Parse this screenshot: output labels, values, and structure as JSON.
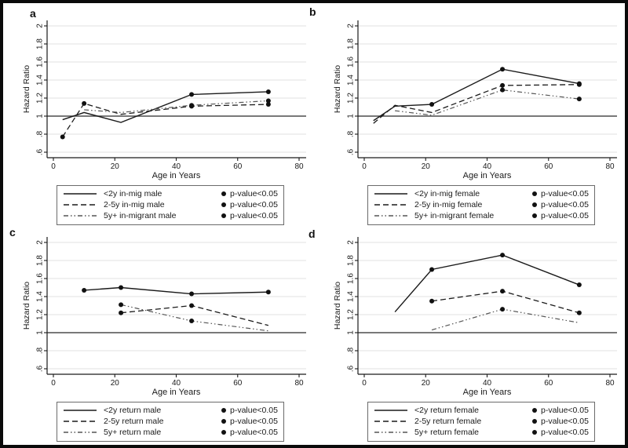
{
  "colors": {
    "line": "#1a1a1a",
    "dashdot_line": "#555555",
    "grid": "#e1e1e1",
    "reference_line": "#4d4d4d",
    "axis": "#1a1a1a",
    "background": "#ffffff",
    "border": "#0a0a0a"
  },
  "chart_data": {
    "type": "line",
    "axes": {
      "xlabel": "Age in Years",
      "ylabel": "Hazard Ratio",
      "xlim": [
        0,
        80
      ],
      "ylim": [
        0.55,
        2.05
      ],
      "grid": "horizontal",
      "reference_line_y": 1,
      "x_ticks": [
        {
          "value": 0,
          "label": "0"
        },
        {
          "value": 20,
          "label": "20"
        },
        {
          "value": 40,
          "label": "40"
        },
        {
          "value": 60,
          "label": "60"
        },
        {
          "value": 80,
          "label": "80"
        }
      ],
      "y_ticks": [
        {
          "value": 2,
          "label": "2"
        },
        {
          "value": 1.8,
          "label": "1.8"
        },
        {
          "value": 1.6,
          "label": "1.6"
        },
        {
          "value": 1.4,
          "label": "1.4"
        },
        {
          "value": 1.2,
          "label": "1.2"
        },
        {
          "value": 1,
          "label": "1"
        },
        {
          "value": 0.8,
          "label": ".8"
        },
        {
          "value": 0.6,
          "label": ".6"
        }
      ]
    },
    "legend_position": "bottom-center",
    "panels": [
      {
        "letter": "a",
        "series": [
          {
            "label": "<2y in-mig male",
            "pattern": "solid",
            "p_label": "p-value<0.05",
            "points": [
              {
                "x": 3,
                "y": 0.96,
                "sig": false
              },
              {
                "x": 10,
                "y": 1.04,
                "sig": false
              },
              {
                "x": 22,
                "y": 0.93,
                "sig": false
              },
              {
                "x": 45,
                "y": 1.24,
                "sig": true
              },
              {
                "x": 70,
                "y": 1.27,
                "sig": true
              }
            ]
          },
          {
            "label": "2-5y in-mig male",
            "pattern": "dashed",
            "p_label": "p-value<0.05",
            "points": [
              {
                "x": 3,
                "y": 0.77,
                "sig": true
              },
              {
                "x": 10,
                "y": 1.14,
                "sig": true
              },
              {
                "x": 22,
                "y": 1.02,
                "sig": false
              },
              {
                "x": 45,
                "y": 1.11,
                "sig": true
              },
              {
                "x": 70,
                "y": 1.13,
                "sig": true
              }
            ]
          },
          {
            "label": "5y+ in-migrant male",
            "pattern": "dashdot",
            "p_label": "p-value<0.05",
            "points": [
              {
                "x": 10,
                "y": 1.07,
                "sig": false
              },
              {
                "x": 22,
                "y": 1.04,
                "sig": false
              },
              {
                "x": 45,
                "y": 1.12,
                "sig": true
              },
              {
                "x": 70,
                "y": 1.17,
                "sig": true
              }
            ]
          }
        ]
      },
      {
        "letter": "b",
        "series": [
          {
            "label": "<2y in-mig female",
            "pattern": "solid",
            "p_label": "p-value<0.05",
            "points": [
              {
                "x": 3,
                "y": 0.95,
                "sig": false
              },
              {
                "x": 10,
                "y": 1.11,
                "sig": false
              },
              {
                "x": 22,
                "y": 1.13,
                "sig": true
              },
              {
                "x": 45,
                "y": 1.52,
                "sig": true
              },
              {
                "x": 70,
                "y": 1.36,
                "sig": true
              }
            ]
          },
          {
            "label": "2-5y in-mig female",
            "pattern": "dashed",
            "p_label": "p-value<0.05",
            "points": [
              {
                "x": 3,
                "y": 0.92,
                "sig": false
              },
              {
                "x": 10,
                "y": 1.12,
                "sig": false
              },
              {
                "x": 22,
                "y": 1.04,
                "sig": false
              },
              {
                "x": 45,
                "y": 1.34,
                "sig": true
              },
              {
                "x": 70,
                "y": 1.35,
                "sig": true
              }
            ]
          },
          {
            "label": "5y+ in-migrant female",
            "pattern": "dashdot",
            "p_label": "p-value<0.05",
            "points": [
              {
                "x": 10,
                "y": 1.06,
                "sig": false
              },
              {
                "x": 22,
                "y": 1.01,
                "sig": false
              },
              {
                "x": 45,
                "y": 1.29,
                "sig": true
              },
              {
                "x": 70,
                "y": 1.19,
                "sig": true
              }
            ]
          }
        ]
      },
      {
        "letter": "c",
        "series": [
          {
            "label": "<2y return male",
            "pattern": "solid",
            "p_label": "p-value<0.05",
            "points": [
              {
                "x": 10,
                "y": 1.47,
                "sig": true
              },
              {
                "x": 22,
                "y": 1.5,
                "sig": true
              },
              {
                "x": 45,
                "y": 1.43,
                "sig": true
              },
              {
                "x": 70,
                "y": 1.45,
                "sig": true
              }
            ]
          },
          {
            "label": "2-5y return male",
            "pattern": "dashed",
            "p_label": "p-value<0.05",
            "points": [
              {
                "x": 22,
                "y": 1.22,
                "sig": true
              },
              {
                "x": 45,
                "y": 1.3,
                "sig": true
              },
              {
                "x": 70,
                "y": 1.08,
                "sig": false
              }
            ]
          },
          {
            "label": "5y+ return male",
            "pattern": "dashdot",
            "p_label": "p-value<0.05",
            "points": [
              {
                "x": 22,
                "y": 1.31,
                "sig": true
              },
              {
                "x": 45,
                "y": 1.13,
                "sig": true
              },
              {
                "x": 70,
                "y": 1.02,
                "sig": false
              }
            ]
          }
        ]
      },
      {
        "letter": "d",
        "series": [
          {
            "label": "<2y return female",
            "pattern": "solid",
            "p_label": "p-value<0.05",
            "points": [
              {
                "x": 10,
                "y": 1.23,
                "sig": false
              },
              {
                "x": 22,
                "y": 1.7,
                "sig": true
              },
              {
                "x": 45,
                "y": 1.86,
                "sig": true
              },
              {
                "x": 70,
                "y": 1.53,
                "sig": true
              }
            ]
          },
          {
            "label": "2-5y return female",
            "pattern": "dashed",
            "p_label": "p-value<0.05",
            "points": [
              {
                "x": 22,
                "y": 1.35,
                "sig": true
              },
              {
                "x": 45,
                "y": 1.46,
                "sig": true
              },
              {
                "x": 70,
                "y": 1.22,
                "sig": true
              }
            ]
          },
          {
            "label": "5y+ return female",
            "pattern": "dashdot",
            "p_label": "p-value<0.05",
            "points": [
              {
                "x": 22,
                "y": 1.03,
                "sig": false
              },
              {
                "x": 45,
                "y": 1.26,
                "sig": true
              },
              {
                "x": 70,
                "y": 1.11,
                "sig": false
              }
            ]
          }
        ]
      }
    ]
  }
}
